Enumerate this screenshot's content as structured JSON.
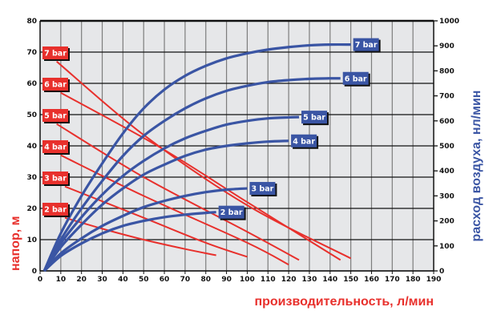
{
  "chart_data": {
    "type": "line",
    "xlabel": "производительность, л/мин",
    "ylabel": "напор, м",
    "y2label": "расход воздуха, нл/мин",
    "xlim": [
      0,
      190
    ],
    "ylim": [
      0,
      80
    ],
    "y2lim": [
      0,
      1000
    ],
    "x_ticks": [
      0,
      10,
      20,
      30,
      40,
      50,
      60,
      70,
      80,
      90,
      100,
      110,
      120,
      130,
      140,
      150,
      160,
      170,
      180,
      190
    ],
    "y_ticks": [
      0,
      10,
      20,
      30,
      40,
      50,
      60,
      70,
      80
    ],
    "y2_ticks": [
      0,
      100,
      200,
      300,
      400,
      500,
      600,
      700,
      800,
      900,
      1000
    ],
    "grid": true,
    "colors": {
      "head": "#e8302c",
      "air": "#3a55a4",
      "plot_bg": "#e6e7e9"
    },
    "head_series": [
      {
        "name": "7 bar",
        "points": [
          [
            8,
            67
          ],
          [
            50,
            43.5
          ],
          [
            100,
            21
          ],
          [
            150,
            4
          ]
        ]
      },
      {
        "name": "6 bar",
        "points": [
          [
            10,
            57
          ],
          [
            58,
            39.5
          ],
          [
            100,
            22
          ],
          [
            145,
            3.5
          ]
        ]
      },
      {
        "name": "5 bar",
        "points": [
          [
            8,
            47
          ],
          [
            50,
            30
          ],
          [
            100,
            12.5
          ],
          [
            125,
            3.5
          ]
        ]
      },
      {
        "name": "4 bar",
        "points": [
          [
            10,
            37
          ],
          [
            50,
            24
          ],
          [
            100,
            9
          ],
          [
            120,
            2
          ]
        ]
      },
      {
        "name": "3 bar",
        "points": [
          [
            12,
            27
          ],
          [
            50,
            17
          ],
          [
            80,
            9
          ],
          [
            100,
            4.5
          ]
        ]
      },
      {
        "name": "2 bar",
        "points": [
          [
            12,
            17
          ],
          [
            30,
            13.5
          ],
          [
            50,
            10
          ],
          [
            70,
            7
          ],
          [
            85,
            5
          ]
        ]
      }
    ],
    "air_series": [
      {
        "name": "7 bar",
        "points": [
          [
            2,
            0
          ],
          [
            10,
            150
          ],
          [
            20,
            300
          ],
          [
            30,
            430
          ],
          [
            40,
            550
          ],
          [
            50,
            650
          ],
          [
            60,
            725
          ],
          [
            70,
            780
          ],
          [
            80,
            820
          ],
          [
            90,
            850
          ],
          [
            100,
            870
          ],
          [
            110,
            885
          ],
          [
            120,
            895
          ],
          [
            130,
            902
          ],
          [
            140,
            905
          ],
          [
            150,
            905
          ]
        ]
      },
      {
        "name": "6 bar",
        "points": [
          [
            2,
            0
          ],
          [
            10,
            125
          ],
          [
            20,
            250
          ],
          [
            30,
            360
          ],
          [
            40,
            460
          ],
          [
            50,
            540
          ],
          [
            60,
            600
          ],
          [
            70,
            650
          ],
          [
            80,
            690
          ],
          [
            90,
            720
          ],
          [
            100,
            740
          ],
          [
            110,
            755
          ],
          [
            120,
            763
          ],
          [
            130,
            768
          ],
          [
            140,
            770
          ],
          [
            145,
            770
          ]
        ]
      },
      {
        "name": "5 bar",
        "points": [
          [
            2,
            0
          ],
          [
            10,
            110
          ],
          [
            20,
            215
          ],
          [
            30,
            305
          ],
          [
            40,
            380
          ],
          [
            50,
            440
          ],
          [
            60,
            490
          ],
          [
            70,
            530
          ],
          [
            80,
            560
          ],
          [
            90,
            585
          ],
          [
            100,
            600
          ],
          [
            110,
            610
          ],
          [
            120,
            614
          ],
          [
            125,
            615
          ]
        ]
      },
      {
        "name": "4 bar",
        "points": [
          [
            2,
            0
          ],
          [
            10,
            95
          ],
          [
            20,
            185
          ],
          [
            30,
            265
          ],
          [
            40,
            330
          ],
          [
            50,
            385
          ],
          [
            60,
            425
          ],
          [
            70,
            460
          ],
          [
            80,
            485
          ],
          [
            90,
            500
          ],
          [
            100,
            510
          ],
          [
            110,
            517
          ],
          [
            120,
            520
          ]
        ]
      },
      {
        "name": "3 bar",
        "points": [
          [
            2,
            0
          ],
          [
            10,
            70
          ],
          [
            20,
            130
          ],
          [
            30,
            180
          ],
          [
            40,
            220
          ],
          [
            50,
            255
          ],
          [
            60,
            280
          ],
          [
            70,
            300
          ],
          [
            80,
            315
          ],
          [
            90,
            325
          ],
          [
            100,
            330
          ]
        ]
      },
      {
        "name": "2 bar",
        "points": [
          [
            2,
            0
          ],
          [
            10,
            60
          ],
          [
            20,
            110
          ],
          [
            30,
            150
          ],
          [
            40,
            180
          ],
          [
            50,
            200
          ],
          [
            60,
            215
          ],
          [
            70,
            225
          ],
          [
            80,
            232
          ],
          [
            85,
            235
          ]
        ]
      }
    ]
  }
}
